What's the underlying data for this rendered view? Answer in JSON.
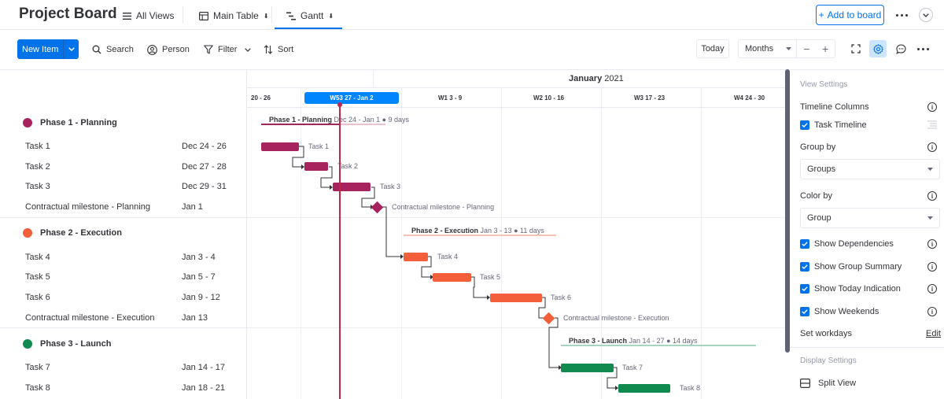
{
  "header": {
    "title": "Project Board",
    "tabs": [
      {
        "label": "All Views",
        "icon": "hamburger-icon"
      },
      {
        "label": "Main Table",
        "icon": "table-icon",
        "pin": "⬇"
      },
      {
        "label": "Gantt",
        "icon": "gantt-icon",
        "pin": "⬇",
        "active": true
      }
    ],
    "add_to_board": "Add to board",
    "add_symbol": "+"
  },
  "toolbar": {
    "new_item": "New Item",
    "search": "Search",
    "person": "Person",
    "filter": "Filter",
    "sort": "Sort",
    "today": "Today",
    "zoom_level": "Months",
    "minus": "−",
    "plus": "+"
  },
  "groups": [
    {
      "name": "Phase 1 - Planning",
      "color": "#a6235d",
      "summary_name": "Phase 1 - Planning",
      "summary_info": "Dec 24 - Jan 1 ● 9 days",
      "tasks": [
        {
          "name": "Task 1",
          "date": "Dec 24 - 26"
        },
        {
          "name": "Task 2",
          "date": "Dec 27 - 28"
        },
        {
          "name": "Task 3",
          "date": "Dec 29 - 31"
        },
        {
          "name": "Contractual milestone - Planning",
          "date": "Jan 1"
        }
      ]
    },
    {
      "name": "Phase 2 - Execution",
      "color": "#f25f3a",
      "summary_name": "Phase 2 - Execution",
      "summary_info": "Jan 3 - 13 ● 11 days",
      "tasks": [
        {
          "name": "Task 4",
          "date": "Jan 3 - 4"
        },
        {
          "name": "Task 5",
          "date": "Jan 5 - 7"
        },
        {
          "name": "Task 6",
          "date": "Jan 9 - 12"
        },
        {
          "name": "Contractual milestone - Execution",
          "date": "Jan 13"
        }
      ]
    },
    {
      "name": "Phase 3 - Launch",
      "color": "#118a4f",
      "summary_name": "Phase 3 - Launch",
      "summary_info": "Jan 14 - 27 ● 14 days",
      "tasks": [
        {
          "name": "Task 7",
          "date": "Jan 14 - 17"
        },
        {
          "name": "Task 8",
          "date": "Jan 18 - 21"
        }
      ]
    }
  ],
  "gantt": {
    "month": "January",
    "year": "2021",
    "weeks": [
      {
        "label": "20 - 26"
      },
      {
        "label": "W53   27 - Jan 2",
        "current": true
      },
      {
        "label": "W1   3 - 9"
      },
      {
        "label": "W2   10 - 16"
      },
      {
        "label": "W3   17 - 23"
      },
      {
        "label": "W4   24 - 30"
      }
    ]
  },
  "settings": {
    "view_settings": "View Settings",
    "timeline_columns": "Timeline Columns",
    "task_timeline": "Task Timeline",
    "group_by": "Group by",
    "group_by_value": "Groups",
    "color_by": "Color by",
    "color_by_value": "Group",
    "show_dependencies": "Show Dependencies",
    "show_group_summary": "Show Group Summary",
    "show_today_indication": "Show Today Indication",
    "show_weekends": "Show Weekends",
    "set_workdays": "Set workdays",
    "edit": "Edit",
    "display_settings": "Display Settings",
    "split_view": "Split View",
    "info_glyph": "i"
  }
}
